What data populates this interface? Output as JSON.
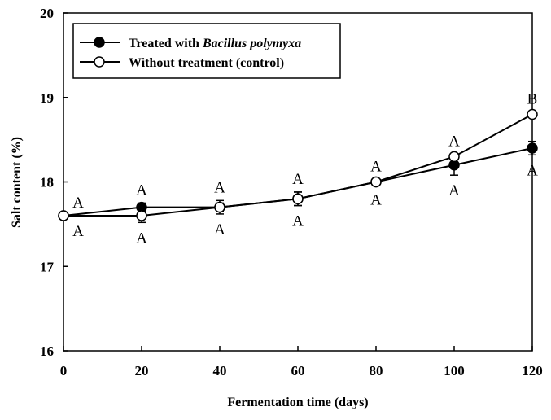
{
  "chart_data": {
    "type": "line",
    "xlabel": "Fermentation time (days)",
    "ylabel": "Salt content (%)",
    "xlim": [
      0,
      120
    ],
    "ylim": [
      16,
      20
    ],
    "xticks": [
      "0",
      "20",
      "40",
      "60",
      "80",
      "100",
      "120"
    ],
    "yticks": [
      "16",
      "17",
      "18",
      "19",
      "20"
    ],
    "grid": false,
    "legend_position": "top-left",
    "x": [
      0,
      20,
      40,
      60,
      80,
      100,
      120
    ],
    "series": [
      {
        "name": "Treated with Bacillus polymyxa",
        "legend_prefix": "Treated with ",
        "legend_italic": "Bacillus polymyxa",
        "marker": "filled-circle",
        "values": [
          17.6,
          17.7,
          17.7,
          17.8,
          18.0,
          18.2,
          18.4
        ],
        "errors": [
          0.0,
          0.05,
          0.05,
          0.08,
          0.03,
          0.12,
          0.08
        ],
        "significance": [
          "A",
          "A",
          "A",
          "A",
          "A",
          "A",
          "A"
        ],
        "significance_side": [
          "above",
          "above",
          "above",
          "above",
          "below",
          "below",
          "below"
        ]
      },
      {
        "name": "Without treatment (control)",
        "legend_prefix": "Without treatment (control)",
        "legend_italic": "",
        "marker": "open-circle",
        "values": [
          17.6,
          17.6,
          17.7,
          17.8,
          18.0,
          18.3,
          18.8
        ],
        "errors": [
          0.0,
          0.08,
          0.08,
          0.08,
          0.03,
          0.03,
          0.03
        ],
        "significance": [
          "A",
          "A",
          "A",
          "A",
          "A",
          "A",
          "B"
        ],
        "significance_side": [
          "below",
          "below",
          "below",
          "below",
          "above",
          "above",
          "above"
        ]
      }
    ]
  }
}
